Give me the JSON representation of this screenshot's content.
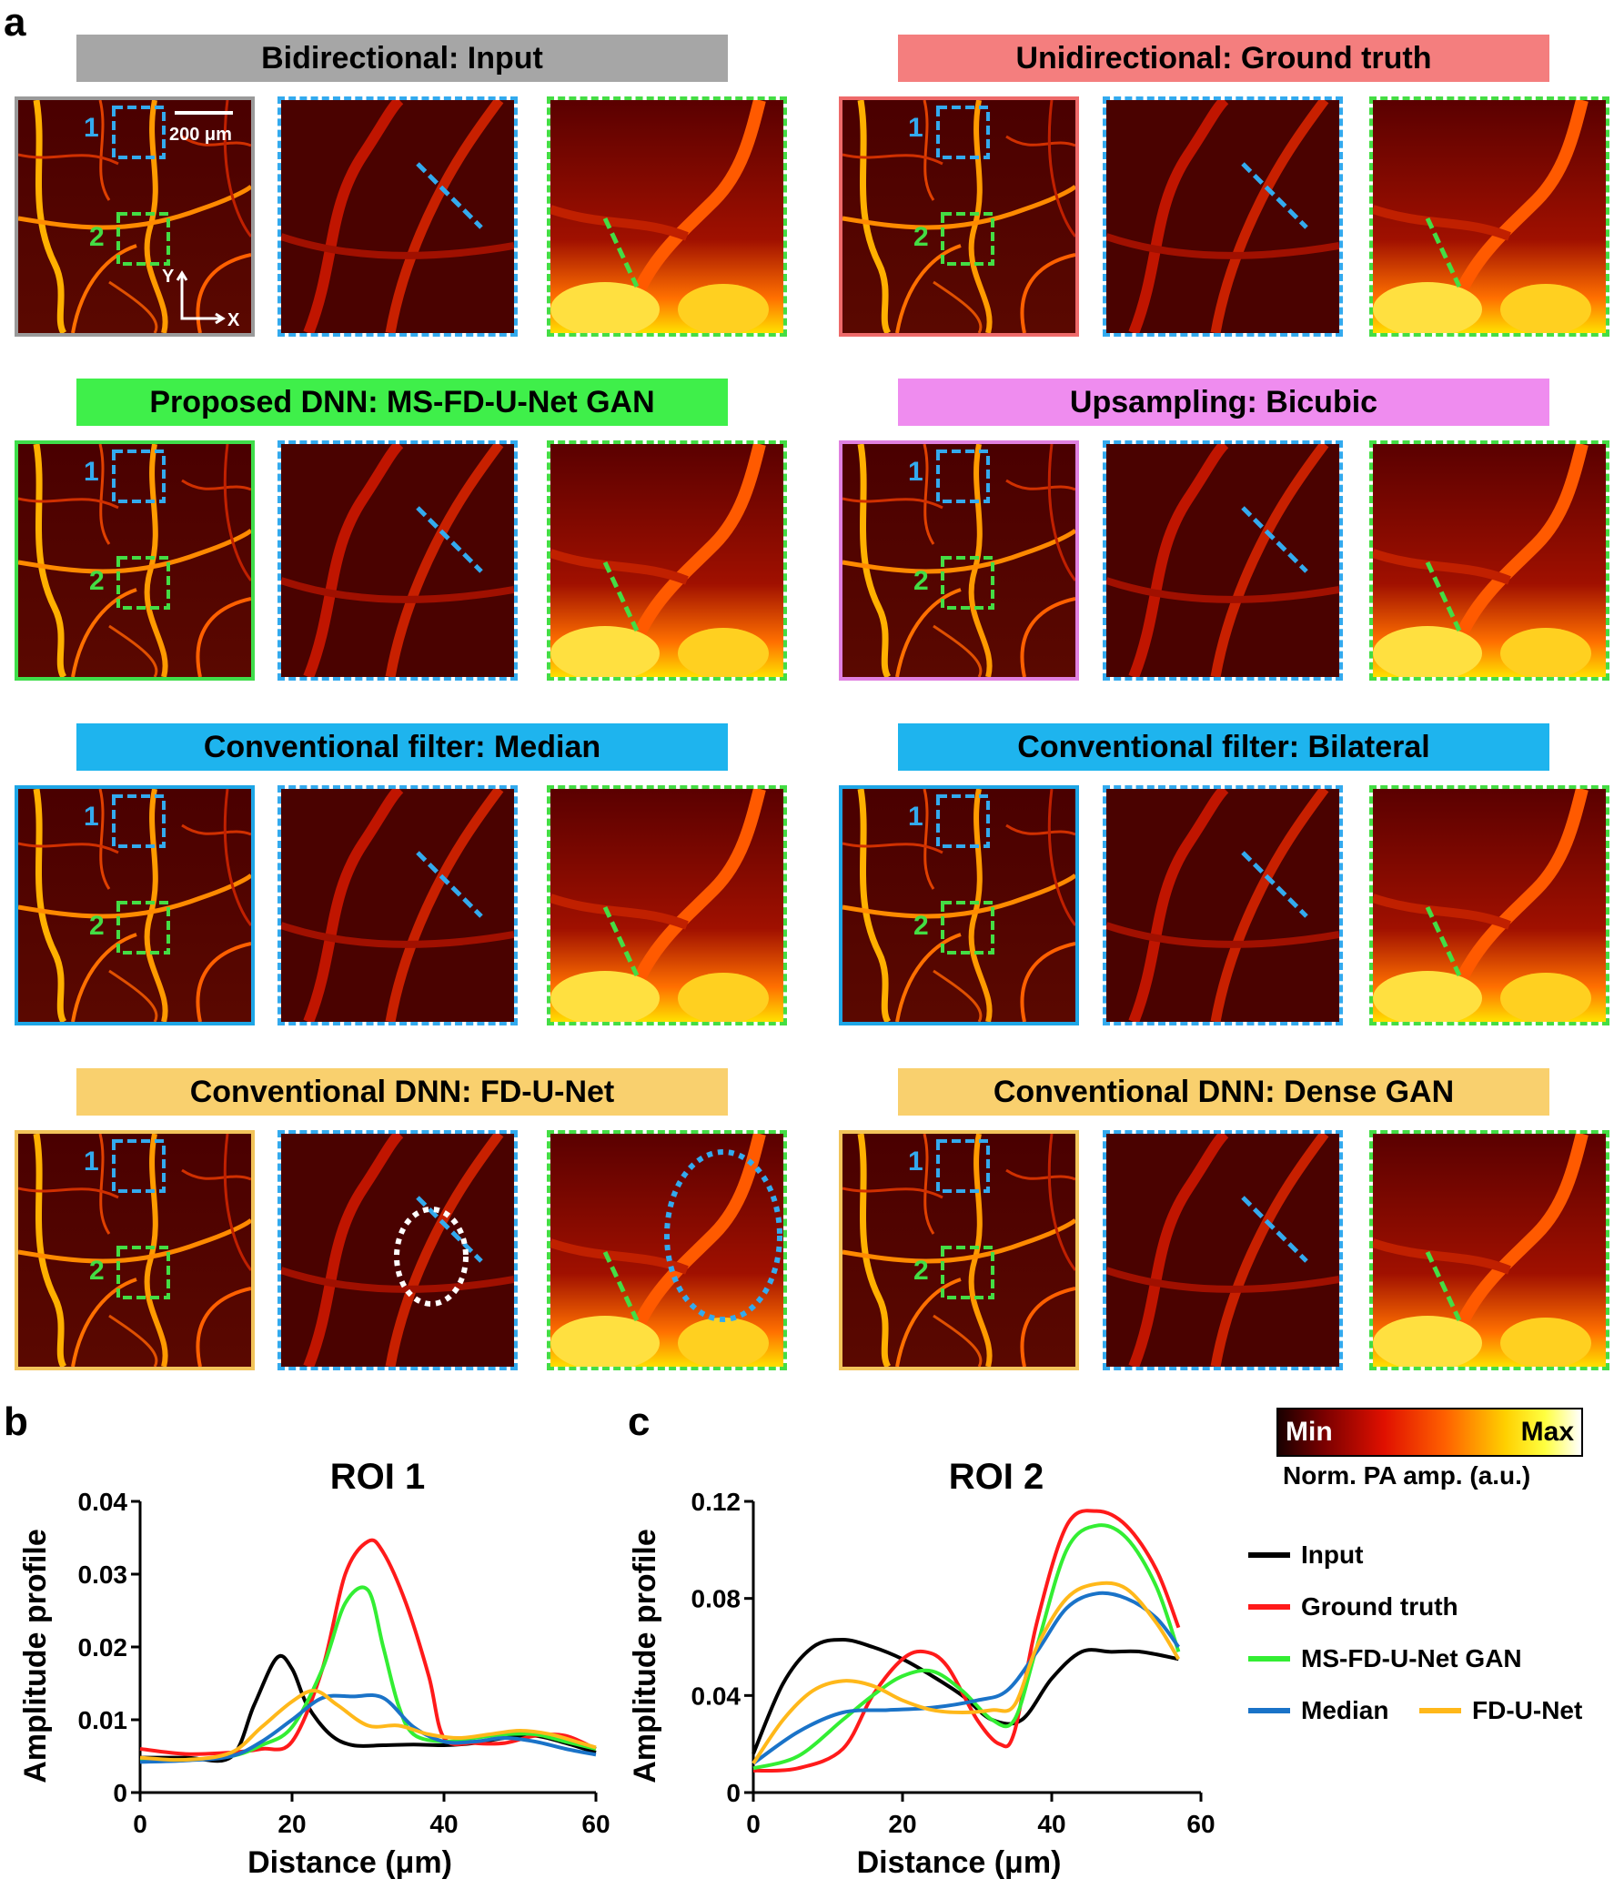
{
  "panel_labels": {
    "a": "a",
    "b": "b",
    "c": "c"
  },
  "rows": [
    {
      "left": {
        "title": "Bidirectional: Input",
        "color": "#a6a6a6",
        "border": "#9a9a9a"
      },
      "right": {
        "title": "Unidirectional: Ground truth",
        "color": "#f47e7e",
        "border": "#ee6a6a"
      }
    },
    {
      "left": {
        "title": "Proposed DNN: MS-FD-U-Net GAN",
        "color": "#3fef4a",
        "border": "#3fdd4a"
      },
      "right": {
        "title": "Upsampling: Bicubic",
        "color": "#ef8cef",
        "border": "#e080e0"
      }
    },
    {
      "left": {
        "title": "Conventional filter: Median",
        "color": "#1eb4ee",
        "border": "#1ea6e6"
      },
      "right": {
        "title": "Conventional filter: Bilateral",
        "color": "#1eb4ee",
        "border": "#1ea6e6"
      }
    },
    {
      "left": {
        "title": "Conventional DNN: FD-U-Net",
        "color": "#f9d06e",
        "border": "#f2c45a"
      },
      "right": {
        "title": "Conventional DNN: Dense GAN",
        "color": "#f9d06e",
        "border": "#f2c45a"
      }
    }
  ],
  "overview_labels": {
    "roi1": "1",
    "roi2": "2",
    "scalebar": "200 μm",
    "axis_y": "Y",
    "axis_x": "X"
  },
  "charts": [
    {
      "title": "ROI 1",
      "ylabel": "Amplitude profile",
      "xlabel": "Distance (μm)",
      "yticks": [
        "0",
        "0.01",
        "0.02",
        "0.03",
        "0.04"
      ],
      "xticks": [
        "0",
        "20",
        "40",
        "60"
      ]
    },
    {
      "title": "ROI 2",
      "ylabel": "Amplitude profile",
      "xlabel": "Distance (μm)",
      "yticks": [
        "0",
        "0.04",
        "0.08",
        "0.12"
      ],
      "xticks": [
        "0",
        "20",
        "40",
        "60"
      ]
    }
  ],
  "chart_data": [
    {
      "type": "line",
      "title": "ROI 1",
      "xlabel": "Distance (μm)",
      "ylabel": "Amplitude profile",
      "xlim": [
        0,
        60
      ],
      "ylim": [
        0,
        0.04
      ],
      "series": [
        {
          "name": "Input",
          "color": "#000000",
          "x": [
            0,
            6,
            12,
            15,
            18,
            20,
            22,
            25,
            28,
            32,
            36,
            40,
            44,
            48,
            52,
            56,
            60
          ],
          "y": [
            0.0048,
            0.0048,
            0.0049,
            0.012,
            0.0185,
            0.017,
            0.012,
            0.008,
            0.0065,
            0.0065,
            0.0066,
            0.0065,
            0.0068,
            0.0075,
            0.0078,
            0.0068,
            0.0055
          ]
        },
        {
          "name": "Ground truth",
          "color": "#ff1a1a",
          "x": [
            0,
            6,
            12,
            16,
            20,
            24,
            27,
            30,
            32,
            35,
            38,
            40,
            44,
            48,
            52,
            56,
            60
          ],
          "y": [
            0.006,
            0.0053,
            0.0055,
            0.006,
            0.007,
            0.017,
            0.03,
            0.0345,
            0.033,
            0.026,
            0.016,
            0.0075,
            0.0068,
            0.0068,
            0.0078,
            0.0078,
            0.006
          ]
        },
        {
          "name": "MS-FD-U-Net GAN",
          "color": "#33ee33",
          "x": [
            0,
            6,
            12,
            16,
            20,
            24,
            27,
            30,
            32,
            34,
            36,
            40,
            44,
            48,
            52,
            56,
            60
          ],
          "y": [
            0.0045,
            0.0045,
            0.005,
            0.0065,
            0.009,
            0.017,
            0.026,
            0.0278,
            0.02,
            0.012,
            0.008,
            0.007,
            0.0075,
            0.008,
            0.008,
            0.007,
            0.006
          ]
        },
        {
          "name": "Median",
          "color": "#1a73c8",
          "x": [
            0,
            6,
            12,
            16,
            20,
            24,
            28,
            32,
            36,
            40,
            44,
            48,
            52,
            56,
            60
          ],
          "y": [
            0.0042,
            0.0044,
            0.005,
            0.007,
            0.01,
            0.013,
            0.0132,
            0.013,
            0.009,
            0.007,
            0.007,
            0.0075,
            0.007,
            0.006,
            0.0052
          ]
        },
        {
          "name": "FD-U-Net",
          "color": "#ffb81a",
          "x": [
            0,
            6,
            12,
            16,
            20,
            23,
            26,
            30,
            34,
            38,
            42,
            46,
            50,
            54,
            58,
            60
          ],
          "y": [
            0.0048,
            0.0045,
            0.0055,
            0.009,
            0.0125,
            0.014,
            0.012,
            0.0092,
            0.0092,
            0.008,
            0.0075,
            0.008,
            0.0085,
            0.008,
            0.0068,
            0.0062
          ]
        }
      ]
    },
    {
      "type": "line",
      "title": "ROI 2",
      "xlabel": "Distance (μm)",
      "ylabel": "Amplitude profile",
      "xlim": [
        0,
        60
      ],
      "ylim": [
        0,
        0.12
      ],
      "series": [
        {
          "name": "Input",
          "color": "#000000",
          "x": [
            0,
            4,
            8,
            12,
            16,
            20,
            24,
            28,
            32,
            36,
            40,
            44,
            48,
            52,
            57
          ],
          "y": [
            0.016,
            0.045,
            0.06,
            0.063,
            0.06,
            0.055,
            0.048,
            0.04,
            0.03,
            0.03,
            0.047,
            0.058,
            0.058,
            0.058,
            0.055
          ]
        },
        {
          "name": "Ground truth",
          "color": "#ff1a1a",
          "x": [
            0,
            6,
            12,
            16,
            20,
            23,
            26,
            30,
            33,
            35,
            38,
            42,
            46,
            50,
            54,
            57
          ],
          "y": [
            0.009,
            0.01,
            0.018,
            0.04,
            0.055,
            0.058,
            0.052,
            0.03,
            0.02,
            0.025,
            0.07,
            0.11,
            0.116,
            0.11,
            0.092,
            0.068
          ]
        },
        {
          "name": "MS-FD-U-Net GAN",
          "color": "#33ee33",
          "x": [
            0,
            6,
            12,
            16,
            20,
            24,
            28,
            32,
            35,
            38,
            42,
            46,
            50,
            54,
            57
          ],
          "y": [
            0.01,
            0.015,
            0.03,
            0.04,
            0.048,
            0.05,
            0.042,
            0.03,
            0.03,
            0.06,
            0.1,
            0.11,
            0.105,
            0.085,
            0.058
          ]
        },
        {
          "name": "Median",
          "color": "#1a73c8",
          "x": [
            0,
            6,
            12,
            18,
            24,
            30,
            34,
            38,
            42,
            46,
            50,
            54,
            57
          ],
          "y": [
            0.012,
            0.025,
            0.033,
            0.034,
            0.035,
            0.038,
            0.042,
            0.058,
            0.076,
            0.082,
            0.08,
            0.072,
            0.06
          ]
        },
        {
          "name": "FD-U-Net",
          "color": "#ffb81a",
          "x": [
            0,
            4,
            8,
            12,
            16,
            20,
            24,
            28,
            32,
            35,
            38,
            42,
            46,
            50,
            54,
            57
          ],
          "y": [
            0.012,
            0.03,
            0.042,
            0.046,
            0.044,
            0.038,
            0.034,
            0.033,
            0.034,
            0.036,
            0.06,
            0.08,
            0.086,
            0.084,
            0.07,
            0.055
          ]
        }
      ]
    }
  ],
  "legend": {
    "items": [
      {
        "label": "Input",
        "color": "#000000"
      },
      {
        "label": "Ground truth",
        "color": "#ff1a1a"
      },
      {
        "label": "MS-FD-U-Net GAN",
        "color": "#33ee33"
      },
      {
        "label": "Median",
        "color": "#1a73c8"
      },
      {
        "label": "FD-U-Net",
        "color": "#ffb81a"
      }
    ]
  },
  "colorbar": {
    "min": "Min",
    "max": "Max",
    "label": "Norm. PA amp. (a.u.)"
  }
}
